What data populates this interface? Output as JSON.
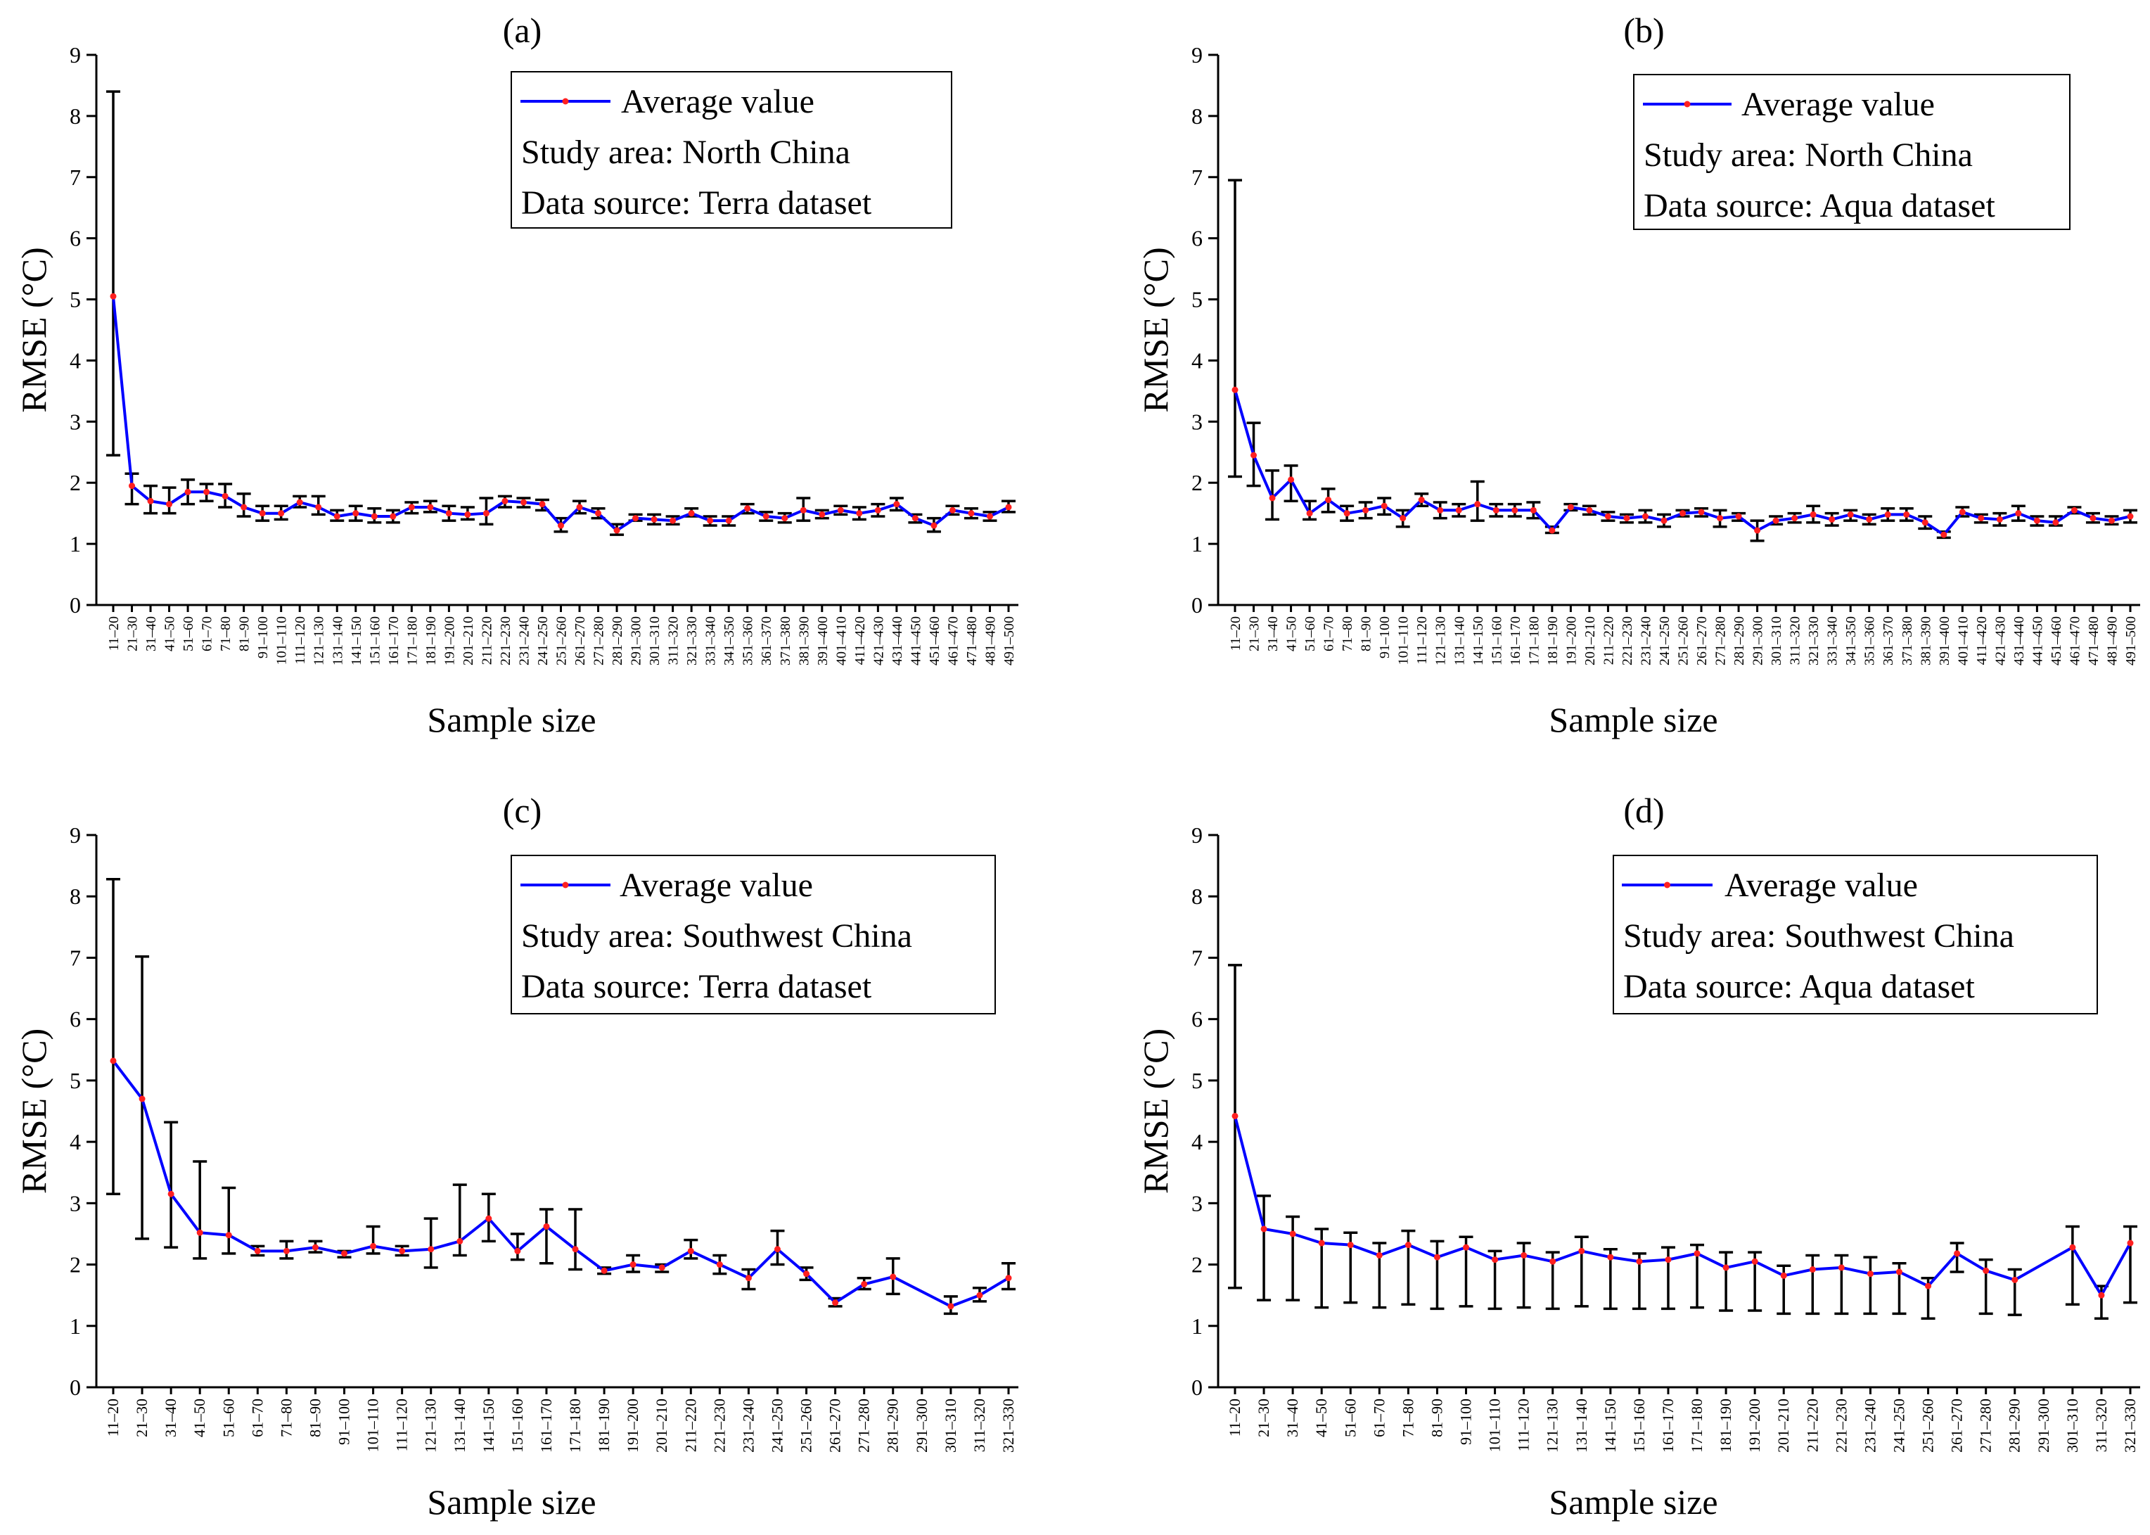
{
  "chart_data": [
    {
      "type": "line",
      "panel_label": "(a)",
      "xlabel": "Sample size",
      "ylabel": "RMSE (°C)",
      "ylim": [
        0,
        9
      ],
      "yticks": [
        "0",
        "1",
        "2",
        "3",
        "4",
        "5",
        "6",
        "7",
        "8",
        "9"
      ],
      "legend": {
        "series_name": "Average value",
        "lines": [
          "Study area: North China",
          "Data source: Terra dataset"
        ],
        "position": "top-right"
      },
      "categories": [
        "11–20",
        "21–30",
        "31–40",
        "41–50",
        "51–60",
        "61–70",
        "71–80",
        "81–90",
        "91–100",
        "101–110",
        "111–120",
        "121–130",
        "131–140",
        "141–150",
        "151–160",
        "161–170",
        "171–180",
        "181–190",
        "191–200",
        "201–210",
        "211–220",
        "221–230",
        "231–240",
        "241–250",
        "251–260",
        "261–270",
        "271–280",
        "281–290",
        "291–300",
        "301–310",
        "311–320",
        "321–330",
        "331–340",
        "341–350",
        "351–360",
        "361–370",
        "371–380",
        "381–390",
        "391–400",
        "401–410",
        "411–420",
        "421–430",
        "431–440",
        "441–450",
        "451–460",
        "461–470",
        "471–480",
        "481–490",
        "491–500"
      ],
      "values": [
        5.05,
        1.95,
        1.7,
        1.65,
        1.85,
        1.85,
        1.78,
        1.6,
        1.5,
        1.5,
        1.68,
        1.6,
        1.45,
        1.5,
        1.45,
        1.45,
        1.6,
        1.6,
        1.5,
        1.48,
        1.5,
        1.7,
        1.68,
        1.65,
        1.3,
        1.6,
        1.5,
        1.22,
        1.42,
        1.4,
        1.38,
        1.5,
        1.38,
        1.38,
        1.58,
        1.45,
        1.42,
        1.55,
        1.48,
        1.55,
        1.5,
        1.55,
        1.65,
        1.42,
        1.3,
        1.55,
        1.5,
        1.45,
        1.6
      ],
      "err_low": [
        2.45,
        1.65,
        1.5,
        1.5,
        1.65,
        1.7,
        1.6,
        1.45,
        1.38,
        1.4,
        1.6,
        1.48,
        1.38,
        1.38,
        1.35,
        1.35,
        1.5,
        1.52,
        1.38,
        1.4,
        1.32,
        1.6,
        1.6,
        1.55,
        1.2,
        1.5,
        1.42,
        1.15,
        1.38,
        1.32,
        1.32,
        1.45,
        1.3,
        1.3,
        1.5,
        1.38,
        1.35,
        1.38,
        1.42,
        1.48,
        1.4,
        1.45,
        1.55,
        1.35,
        1.2,
        1.48,
        1.42,
        1.38,
        1.52
      ],
      "err_high": [
        8.4,
        2.15,
        1.95,
        1.92,
        2.05,
        1.98,
        1.98,
        1.82,
        1.62,
        1.62,
        1.78,
        1.78,
        1.55,
        1.62,
        1.58,
        1.55,
        1.68,
        1.7,
        1.62,
        1.6,
        1.75,
        1.78,
        1.75,
        1.72,
        1.42,
        1.7,
        1.58,
        1.32,
        1.48,
        1.48,
        1.45,
        1.58,
        1.45,
        1.45,
        1.65,
        1.52,
        1.5,
        1.75,
        1.55,
        1.62,
        1.6,
        1.65,
        1.75,
        1.48,
        1.42,
        1.62,
        1.58,
        1.52,
        1.7
      ]
    },
    {
      "type": "line",
      "panel_label": "(b)",
      "xlabel": "Sample size",
      "ylabel": "RMSE (°C)",
      "ylim": [
        0,
        9
      ],
      "yticks": [
        "0",
        "1",
        "2",
        "3",
        "4",
        "5",
        "6",
        "7",
        "8",
        "9"
      ],
      "legend": {
        "series_name": "Average value",
        "lines": [
          "Study area: North China",
          "Data source: Aqua dataset"
        ],
        "position": "top-right"
      },
      "categories": [
        "11–20",
        "21–30",
        "31–40",
        "41–50",
        "51–60",
        "61–70",
        "71–80",
        "81–90",
        "91–100",
        "101–110",
        "111–120",
        "121–130",
        "131–140",
        "141–150",
        "151–160",
        "161–170",
        "171–180",
        "181–190",
        "191–200",
        "201–210",
        "211–220",
        "221–230",
        "231–240",
        "241–250",
        "251–260",
        "261–270",
        "271–280",
        "281–290",
        "291–300",
        "301–310",
        "311–320",
        "321–330",
        "331–340",
        "341–350",
        "351–360",
        "361–370",
        "371–380",
        "381–390",
        "391–400",
        "401–410",
        "411–420",
        "421–430",
        "431–440",
        "441–450",
        "451–460",
        "461–470",
        "471–480",
        "481–490",
        "491–500"
      ],
      "values": [
        3.52,
        2.45,
        1.75,
        2.05,
        1.5,
        1.72,
        1.5,
        1.55,
        1.62,
        1.42,
        1.72,
        1.55,
        1.55,
        1.65,
        1.55,
        1.55,
        1.55,
        1.22,
        1.6,
        1.55,
        1.45,
        1.42,
        1.45,
        1.38,
        1.5,
        1.52,
        1.42,
        1.45,
        1.22,
        1.38,
        1.42,
        1.48,
        1.4,
        1.48,
        1.4,
        1.48,
        1.48,
        1.35,
        1.15,
        1.52,
        1.42,
        1.4,
        1.5,
        1.38,
        1.35,
        1.55,
        1.42,
        1.38,
        1.45
      ],
      "err_low": [
        2.1,
        1.95,
        1.4,
        1.7,
        1.4,
        1.52,
        1.38,
        1.42,
        1.48,
        1.28,
        1.62,
        1.42,
        1.45,
        1.38,
        1.45,
        1.45,
        1.42,
        1.18,
        1.55,
        1.48,
        1.38,
        1.35,
        1.35,
        1.28,
        1.45,
        1.45,
        1.28,
        1.38,
        1.05,
        1.32,
        1.35,
        1.35,
        1.3,
        1.38,
        1.32,
        1.38,
        1.38,
        1.25,
        1.1,
        1.45,
        1.35,
        1.3,
        1.38,
        1.3,
        1.3,
        1.5,
        1.35,
        1.32,
        1.35
      ],
      "err_high": [
        6.95,
        2.98,
        2.2,
        2.28,
        1.7,
        1.9,
        1.62,
        1.68,
        1.75,
        1.55,
        1.82,
        1.68,
        1.65,
        2.02,
        1.65,
        1.65,
        1.68,
        1.28,
        1.65,
        1.62,
        1.52,
        1.48,
        1.55,
        1.48,
        1.55,
        1.58,
        1.55,
        1.5,
        1.38,
        1.45,
        1.5,
        1.62,
        1.5,
        1.55,
        1.48,
        1.58,
        1.58,
        1.45,
        1.2,
        1.6,
        1.48,
        1.5,
        1.62,
        1.45,
        1.45,
        1.6,
        1.5,
        1.45,
        1.55
      ]
    },
    {
      "type": "line",
      "panel_label": "(c)",
      "xlabel": "Sample size",
      "ylabel": "RMSE (°C)",
      "ylim": [
        0,
        9
      ],
      "yticks": [
        "0",
        "1",
        "2",
        "3",
        "4",
        "5",
        "6",
        "7",
        "8",
        "9"
      ],
      "legend": {
        "series_name": "Average value",
        "lines": [
          "Study area: Southwest China",
          "Data source: Terra dataset"
        ],
        "position": "top-right"
      },
      "categories": [
        "11–20",
        "21–30",
        "31–40",
        "41–50",
        "51–60",
        "61–70",
        "71–80",
        "81–90",
        "91–100",
        "101–110",
        "111–120",
        "121–130",
        "131–140",
        "141–150",
        "151–160",
        "161–170",
        "171–180",
        "181–190",
        "191–200",
        "201–210",
        "211–220",
        "221–230",
        "231–240",
        "241–250",
        "251–260",
        "261–270",
        "271–280",
        "281–290",
        "291–300",
        "301–310",
        "311–320",
        "321–330"
      ],
      "values": [
        5.32,
        4.7,
        3.15,
        2.52,
        2.48,
        2.22,
        2.22,
        2.28,
        2.18,
        2.3,
        2.22,
        2.25,
        2.38,
        2.75,
        2.22,
        2.62,
        2.25,
        1.9,
        2.0,
        1.95,
        2.22,
        2.0,
        1.78,
        2.25,
        1.85,
        1.38,
        1.68,
        1.8,
        null,
        1.32,
        1.5,
        1.78
      ],
      "err_low": [
        3.15,
        2.42,
        2.28,
        2.1,
        2.18,
        2.15,
        2.1,
        2.2,
        2.12,
        2.18,
        2.15,
        1.95,
        2.15,
        2.38,
        2.08,
        2.02,
        1.92,
        1.85,
        1.88,
        1.88,
        2.1,
        1.85,
        1.6,
        2.0,
        1.75,
        1.32,
        1.6,
        1.52,
        null,
        1.2,
        1.4,
        1.6
      ],
      "err_high": [
        8.28,
        7.02,
        4.32,
        3.68,
        3.25,
        2.3,
        2.38,
        2.38,
        2.22,
        2.62,
        2.3,
        2.75,
        3.3,
        3.15,
        2.5,
        2.9,
        2.9,
        1.95,
        2.15,
        2.0,
        2.4,
        2.15,
        1.92,
        2.55,
        1.95,
        1.45,
        1.78,
        2.1,
        null,
        1.48,
        1.62,
        2.02
      ]
    },
    {
      "type": "line",
      "panel_label": "(d)",
      "xlabel": "Sample size",
      "ylabel": "RMSE (°C)",
      "ylim": [
        0,
        9
      ],
      "yticks": [
        "0",
        "1",
        "2",
        "3",
        "4",
        "5",
        "6",
        "7",
        "8",
        "9"
      ],
      "legend": {
        "series_name": "Average value",
        "lines": [
          "Study area: Southwest China",
          "Data source: Aqua dataset"
        ],
        "position": "top-right"
      },
      "categories": [
        "11–20",
        "21–30",
        "31–40",
        "41–50",
        "51–60",
        "61–70",
        "71–80",
        "81–90",
        "91–100",
        "101–110",
        "111–120",
        "121–130",
        "131–140",
        "141–150",
        "151–160",
        "161–170",
        "171–180",
        "181–190",
        "191–200",
        "201–210",
        "211–220",
        "221–230",
        "231–240",
        "241–250",
        "251–260",
        "261–270",
        "271–280",
        "281–290",
        "291–300",
        "301–310",
        "311–320",
        "321–330"
      ],
      "values": [
        4.42,
        2.58,
        2.5,
        2.35,
        2.32,
        2.15,
        2.32,
        2.12,
        2.28,
        2.08,
        2.15,
        2.05,
        2.22,
        2.12,
        2.05,
        2.08,
        2.18,
        1.95,
        2.05,
        1.82,
        1.92,
        1.95,
        1.85,
        1.88,
        1.65,
        2.18,
        1.9,
        1.75,
        null,
        2.28,
        1.5,
        2.35
      ],
      "err_low": [
        1.62,
        1.42,
        1.42,
        1.3,
        1.38,
        1.3,
        1.35,
        1.28,
        1.32,
        1.28,
        1.3,
        1.28,
        1.32,
        1.28,
        1.28,
        1.28,
        1.3,
        1.25,
        1.25,
        1.2,
        1.2,
        1.2,
        1.2,
        1.2,
        1.12,
        1.88,
        1.2,
        1.18,
        null,
        1.35,
        1.12,
        1.38
      ],
      "err_high": [
        6.88,
        3.12,
        2.78,
        2.58,
        2.52,
        2.35,
        2.55,
        2.38,
        2.45,
        2.22,
        2.35,
        2.2,
        2.45,
        2.25,
        2.18,
        2.28,
        2.32,
        2.2,
        2.2,
        1.98,
        2.15,
        2.15,
        2.12,
        2.02,
        1.78,
        2.35,
        2.08,
        1.92,
        null,
        2.62,
        1.65,
        2.62
      ]
    }
  ]
}
